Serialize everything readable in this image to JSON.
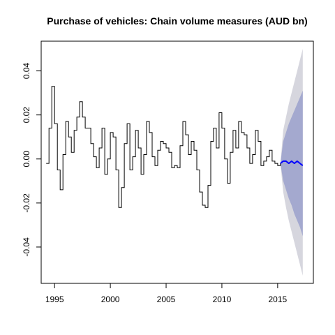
{
  "chart_data": {
    "type": "line",
    "title": "Purchase of vehicles: Chain volume measures (AUD bn)",
    "xlabel": "",
    "ylabel": "",
    "xlim": [
      1993.8,
      2018.2
    ],
    "ylim": [
      -0.0565,
      0.0535
    ],
    "x_ticks": [
      1995,
      2000,
      2005,
      2010,
      2015
    ],
    "x_tick_labels": [
      "1995",
      "2000",
      "2005",
      "2010",
      "2015"
    ],
    "y_ticks": [
      -0.04,
      -0.02,
      0.0,
      0.02,
      0.04
    ],
    "y_tick_labels": [
      "-0.04",
      "-0.02",
      "0.00",
      "0.02",
      "0.04"
    ],
    "grid": false,
    "legend": "none",
    "colors": {
      "history": "#000000",
      "forecast": "#0000ff",
      "band_80": "#a4a9cf",
      "band_95": "#d6d6de"
    },
    "series": [
      {
        "role": "history",
        "x": [
          1994.25,
          1994.5,
          1994.75,
          1995.0,
          1995.25,
          1995.5,
          1995.75,
          1996.0,
          1996.25,
          1996.5,
          1996.75,
          1997.0,
          1997.25,
          1997.5,
          1997.75,
          1998.0,
          1998.25,
          1998.5,
          1998.75,
          1999.0,
          1999.25,
          1999.5,
          1999.75,
          2000.0,
          2000.25,
          2000.5,
          2000.75,
          2001.0,
          2001.25,
          2001.5,
          2001.75,
          2002.0,
          2002.25,
          2002.5,
          2002.75,
          2003.0,
          2003.25,
          2003.5,
          2003.75,
          2004.0,
          2004.25,
          2004.5,
          2004.75,
          2005.0,
          2005.25,
          2005.5,
          2005.75,
          2006.0,
          2006.25,
          2006.5,
          2006.75,
          2007.0,
          2007.25,
          2007.5,
          2007.75,
          2008.0,
          2008.25,
          2008.5,
          2008.75,
          2009.0,
          2009.25,
          2009.5,
          2009.75,
          2010.0,
          2010.25,
          2010.5,
          2010.75,
          2011.0,
          2011.25,
          2011.5,
          2011.75,
          2012.0,
          2012.25,
          2012.5,
          2012.75,
          2013.0,
          2013.25,
          2013.5,
          2013.75,
          2014.0,
          2014.25,
          2014.5,
          2014.75,
          2015.0,
          2015.25
        ],
        "y": [
          -0.002,
          0.014,
          0.033,
          0.016,
          -0.005,
          -0.014,
          0.002,
          0.017,
          0.01,
          0.003,
          0.013,
          0.019,
          0.026,
          0.019,
          0.014,
          0.014,
          0.007,
          0.001,
          -0.004,
          0.005,
          0.014,
          -0.007,
          0.0,
          0.012,
          0.01,
          -0.005,
          -0.022,
          -0.013,
          0.007,
          0.016,
          -0.005,
          0.001,
          0.013,
          0.005,
          -0.007,
          0.002,
          0.017,
          0.012,
          0.001,
          -0.003,
          0.004,
          0.008,
          0.007,
          0.005,
          0.003,
          -0.004,
          -0.003,
          -0.004,
          0.006,
          0.017,
          0.011,
          0.002,
          0.008,
          0.004,
          -0.005,
          -0.015,
          -0.021,
          -0.022,
          -0.012,
          0.008,
          0.014,
          0.005,
          0.021,
          0.014,
          0.0,
          -0.011,
          0.003,
          0.013,
          0.005,
          0.017,
          0.012,
          0.011,
          0.005,
          -0.002,
          0.002,
          0.013,
          0.008,
          -0.003,
          -0.001,
          0.001,
          0.004,
          -0.001,
          -0.002,
          -0.003,
          -0.002
        ]
      },
      {
        "role": "forecast",
        "x": [
          2015.5,
          2015.75,
          2016.0,
          2016.25,
          2016.5,
          2016.75,
          2017.0,
          2017.25
        ],
        "y": [
          -0.001,
          -0.001,
          -0.002,
          -0.001,
          -0.002,
          -0.001,
          -0.002,
          -0.003
        ],
        "lo80": [
          -0.01,
          -0.014,
          -0.018,
          -0.021,
          -0.025,
          -0.028,
          -0.031,
          -0.035
        ],
        "hi80": [
          0.008,
          0.012,
          0.016,
          0.019,
          0.022,
          0.025,
          0.028,
          0.031
        ],
        "lo95": [
          -0.015,
          -0.022,
          -0.028,
          -0.033,
          -0.038,
          -0.043,
          -0.048,
          -0.053
        ],
        "hi95": [
          0.013,
          0.019,
          0.025,
          0.03,
          0.035,
          0.04,
          0.045,
          0.05
        ]
      }
    ]
  }
}
